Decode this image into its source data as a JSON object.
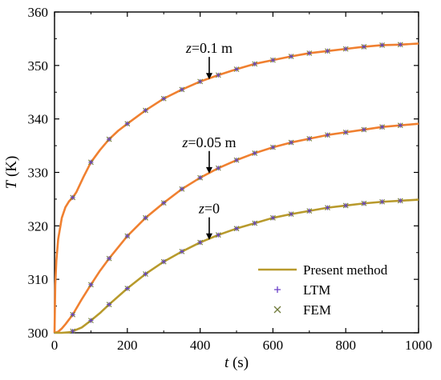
{
  "chart_data": {
    "type": "line",
    "xlabel": "t (s)",
    "ylabel": "T (K)",
    "xlim": [
      0,
      1000
    ],
    "ylim": [
      300,
      360
    ],
    "xticks": [
      0,
      200,
      400,
      600,
      800,
      1000
    ],
    "yticks": [
      300,
      310,
      320,
      330,
      340,
      350,
      360
    ],
    "grid": false,
    "legend_position": "bottom-right",
    "legend": [
      {
        "label": "Present method",
        "kind": "line"
      },
      {
        "label": "LTM",
        "kind": "plus"
      },
      {
        "label": "FEM",
        "kind": "cross"
      }
    ],
    "colors": {
      "present_low": "#b89a2c",
      "present_high": "#f08030",
      "ltm": "#6a3fc8",
      "fem": "#6f7a3a"
    },
    "series": [
      {
        "name": "z=0.1 m",
        "color_key": "present_high",
        "x": [
          0,
          2,
          5,
          10,
          20,
          30,
          40,
          50,
          60,
          80,
          100,
          125,
          150,
          175,
          200,
          250,
          300,
          350,
          400,
          450,
          500,
          550,
          600,
          650,
          700,
          750,
          800,
          850,
          900,
          950,
          1000
        ],
        "y": [
          300,
          309,
          313.5,
          317.5,
          321.5,
          323.5,
          324.6,
          325.3,
          326.3,
          329.2,
          331.9,
          334.2,
          336.2,
          337.8,
          339.1,
          341.6,
          343.8,
          345.5,
          347.0,
          348.2,
          349.3,
          350.3,
          351.0,
          351.7,
          352.3,
          352.7,
          353.1,
          353.5,
          353.8,
          353.9,
          354.1
        ],
        "markers_x": [
          50,
          100,
          150,
          200,
          250,
          300,
          350,
          400,
          450,
          500,
          550,
          600,
          650,
          700,
          750,
          800,
          850,
          900,
          950
        ],
        "markers_y": [
          325.3,
          331.9,
          336.2,
          339.1,
          341.6,
          343.8,
          345.5,
          347.0,
          348.2,
          349.3,
          350.3,
          351.0,
          351.7,
          352.3,
          352.7,
          353.1,
          353.5,
          353.8,
          353.9
        ]
      },
      {
        "name": "z=0.05 m",
        "color_key": "present_high",
        "x": [
          0,
          10,
          20,
          30,
          50,
          75,
          100,
          125,
          150,
          200,
          250,
          300,
          350,
          400,
          450,
          500,
          550,
          600,
          650,
          700,
          750,
          800,
          850,
          900,
          950,
          1000
        ],
        "y": [
          300,
          300.2,
          300.8,
          301.6,
          303.4,
          306.3,
          309.0,
          311.6,
          313.9,
          318.1,
          321.5,
          324.3,
          326.9,
          329.0,
          330.8,
          332.3,
          333.6,
          334.7,
          335.6,
          336.3,
          337.0,
          337.5,
          338.0,
          338.5,
          338.8,
          339.1
        ],
        "markers_x": [
          50,
          100,
          150,
          200,
          250,
          300,
          350,
          400,
          450,
          500,
          550,
          600,
          650,
          700,
          750,
          800,
          850,
          900,
          950
        ],
        "markers_y": [
          303.4,
          309.0,
          313.9,
          318.1,
          321.5,
          324.3,
          326.9,
          329.0,
          330.8,
          332.3,
          333.6,
          334.7,
          335.6,
          336.3,
          337.0,
          337.5,
          338.0,
          338.5,
          338.8
        ]
      },
      {
        "name": "z=0",
        "color_key": "present_low",
        "x": [
          0,
          20,
          40,
          50,
          75,
          100,
          125,
          150,
          200,
          250,
          300,
          350,
          400,
          450,
          500,
          550,
          600,
          650,
          700,
          750,
          800,
          850,
          900,
          950,
          1000
        ],
        "y": [
          300,
          300.0,
          300.1,
          300.3,
          301.0,
          302.3,
          303.7,
          305.3,
          308.3,
          311.0,
          313.3,
          315.2,
          316.9,
          318.3,
          319.5,
          320.5,
          321.5,
          322.2,
          322.8,
          323.4,
          323.8,
          324.2,
          324.5,
          324.7,
          324.9
        ],
        "markers_x": [
          50,
          100,
          150,
          200,
          250,
          300,
          350,
          400,
          450,
          500,
          550,
          600,
          650,
          700,
          750,
          800,
          850,
          900,
          950
        ],
        "markers_y": [
          300.3,
          302.3,
          305.3,
          308.3,
          311.0,
          313.3,
          315.2,
          316.9,
          318.3,
          319.5,
          320.5,
          321.5,
          322.2,
          322.8,
          323.4,
          323.8,
          324.2,
          324.5,
          324.7
        ]
      }
    ],
    "annotations": [
      {
        "label": "z=0.1 m",
        "italic_part": "z",
        "rest": "=0.1 m",
        "arrow_x": 425,
        "arrow_tip_y": 347.4,
        "arrow_tail_y": 351.6
      },
      {
        "label": "z=0.05 m",
        "italic_part": "z",
        "rest": "=0.05 m",
        "arrow_x": 425,
        "arrow_tip_y": 329.8,
        "arrow_tail_y": 334.0
      },
      {
        "label": "z=0",
        "italic_part": "z",
        "rest": "=0",
        "arrow_x": 425,
        "arrow_tip_y": 317.4,
        "arrow_tail_y": 321.6
      }
    ]
  }
}
